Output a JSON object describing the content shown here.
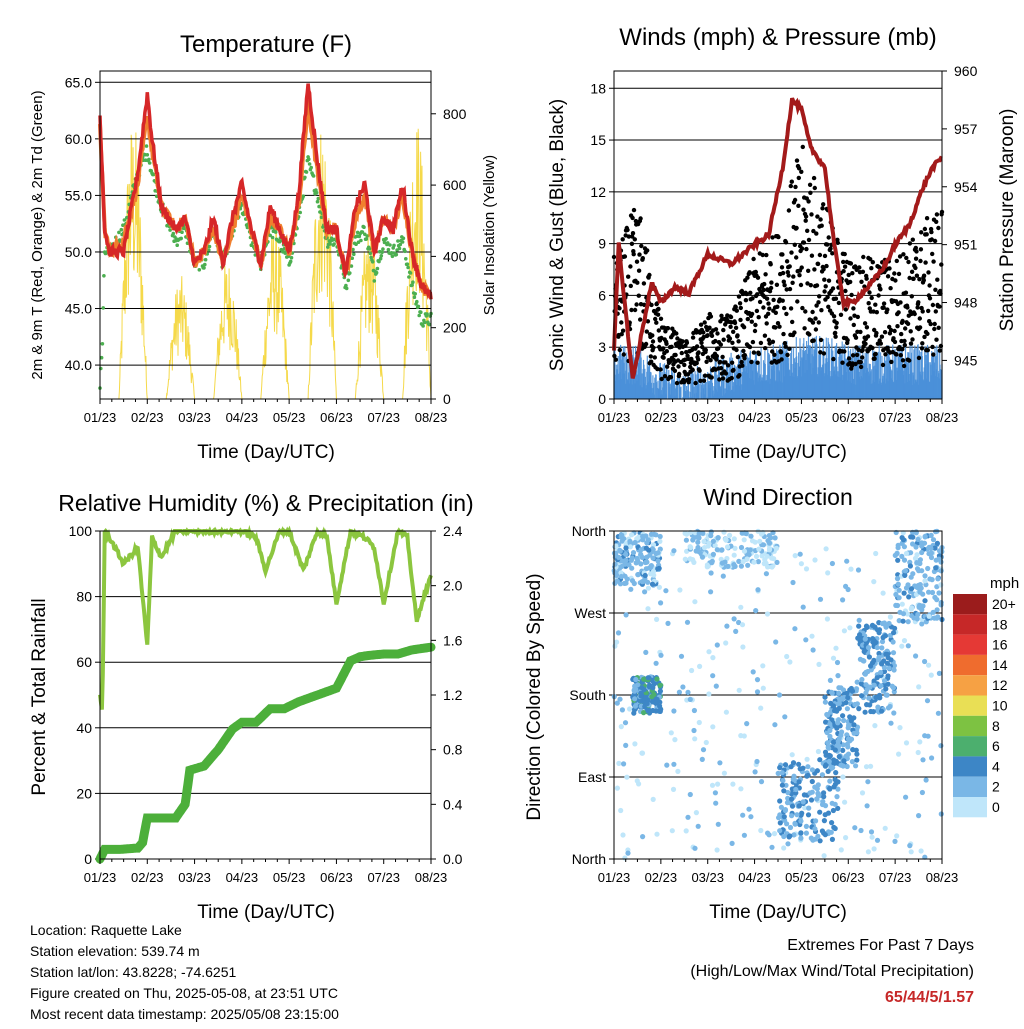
{
  "panels": {
    "temperature": {
      "title": "Temperature (F)",
      "ylabel_left": "2m & 9m T (Red, Orange) & 2m Td (Green)",
      "ylabel_right": "Solar Insolation (Yellow)",
      "xlabel": "Time (Day/UTC)"
    },
    "winds": {
      "title": "Winds (mph) & Pressure (mb)",
      "ylabel_left": "Sonic Wind & Gust (Blue, Black)",
      "ylabel_right": "Station Pressure (Maroon)",
      "xlabel": "Time (Day/UTC)"
    },
    "humidity": {
      "title": "Relative Humidity (%) & Precipitation (in)",
      "ylabel_left": "Percent & Total Rainfall",
      "xlabel": "Time (Day/UTC)"
    },
    "direction": {
      "title": "Wind Direction",
      "ylabel_left": "Direction (Colored By Speed)",
      "xlabel": "Time (Day/UTC)",
      "legend_title": "mph"
    }
  },
  "footer": {
    "location": "Location: Raquette Lake",
    "elevation": "Station elevation: 539.74 m",
    "latlon": "Station lat/lon: 43.8228; -74.6251",
    "created": "Figure created on Thu, 2025-05-08, at 23:51 UTC",
    "recent": "Most recent data timestamp: 2025/05/08 23:15:00",
    "extremes_title": "Extremes For Past 7 Days",
    "extremes_sub": "(High/Low/Max Wind/Total Precipitation)",
    "extremes_value": "65/44/5/1.57"
  },
  "colors": {
    "temp2m": "#d62728",
    "temp9m": "#f07f2e",
    "dewpoint": "#4caf50",
    "solar": "#f5d94a",
    "wind": "#4a90d9",
    "gust": "#000000",
    "pressure": "#a31a1a",
    "rh": "#8cc63f",
    "precip": "#4caf3a"
  },
  "chart_data": [
    {
      "id": "temperature",
      "type": "line",
      "title": "Temperature (F)",
      "xlabel": "Time (Day/UTC)",
      "ylabel": "2m & 9m T (Red, Orange) & 2m Td (Green)",
      "ylabel_right": "Solar Insolation (Yellow)",
      "x_ticks": [
        "01/23",
        "02/23",
        "03/23",
        "04/23",
        "05/23",
        "06/23",
        "07/23",
        "08/23"
      ],
      "xlim": [
        0,
        7
      ],
      "ylim": [
        37,
        66
      ],
      "y_ticks": [
        40.0,
        45.0,
        50.0,
        55.0,
        60.0,
        65.0
      ],
      "y_tick_labels": [
        "40.0",
        "45.0",
        "50.0",
        "55.0",
        "60.0",
        "65.0"
      ],
      "ylim_right": [
        0,
        920
      ],
      "y_ticks_right": [
        0,
        200,
        400,
        600,
        800
      ],
      "series": [
        {
          "name": "2m T",
          "color": "#d62728",
          "x": [
            0,
            0.1,
            0.2,
            0.5,
            0.8,
            1.0,
            1.1,
            1.3,
            1.6,
            1.8,
            2.0,
            2.2,
            2.4,
            2.6,
            2.8,
            3.0,
            3.2,
            3.4,
            3.6,
            3.8,
            4.0,
            4.2,
            4.4,
            4.6,
            4.8,
            5.0,
            5.2,
            5.4,
            5.6,
            5.8,
            6.0,
            6.2,
            6.4,
            6.6,
            6.8,
            7.0
          ],
          "y": [
            62,
            52,
            50,
            50,
            57,
            64,
            60,
            54,
            52,
            53,
            49,
            50,
            53,
            49,
            53,
            56,
            52,
            49,
            54,
            52,
            50,
            55,
            65,
            58,
            52,
            52,
            48,
            54,
            56,
            50,
            53,
            52,
            56,
            50,
            47,
            46
          ]
        },
        {
          "name": "9m T",
          "color": "#f07f2e",
          "x": [
            0,
            0.1,
            0.2,
            0.5,
            0.8,
            1.0,
            1.1,
            1.3,
            1.6,
            1.8,
            2.0,
            2.2,
            2.4,
            2.6,
            2.8,
            3.0,
            3.2,
            3.4,
            3.6,
            3.8,
            4.0,
            4.2,
            4.4,
            4.6,
            4.8,
            5.0,
            5.2,
            5.4,
            5.6,
            5.8,
            6.0,
            6.2,
            6.4,
            6.6,
            6.8,
            7.0
          ],
          "y": [
            61,
            52,
            50,
            51,
            56,
            62,
            59,
            54,
            52,
            53,
            49,
            50,
            52,
            49,
            52,
            55,
            52,
            49,
            53,
            52,
            50,
            54,
            63,
            57,
            52,
            52,
            48,
            53,
            55,
            50,
            53,
            52,
            55,
            50,
            47,
            46
          ]
        },
        {
          "name": "2m Td",
          "color": "#4caf50",
          "x": [
            0,
            0.05,
            0.1,
            0.2,
            0.5,
            0.8,
            1.0,
            1.1,
            1.3,
            1.6,
            1.8,
            2.0,
            2.2,
            2.4,
            2.6,
            2.8,
            3.0,
            3.2,
            3.4,
            3.6,
            3.8,
            4.0,
            4.2,
            4.4,
            4.6,
            4.8,
            5.0,
            5.2,
            5.4,
            5.6,
            5.8,
            6.0,
            6.2,
            6.4,
            6.6,
            6.8,
            7.0
          ],
          "y": [
            38,
            42,
            50,
            50,
            52,
            57,
            59,
            57,
            54,
            51,
            52,
            49,
            49,
            52,
            49,
            52,
            54,
            51,
            49,
            52,
            51,
            49,
            53,
            58,
            55,
            51,
            51,
            47,
            51,
            52,
            48,
            51,
            50,
            51,
            47,
            44,
            44
          ]
        }
      ],
      "solar_series": {
        "name": "Solar Insolation",
        "color": "#f5d94a",
        "day_centers": [
          0.7,
          1.7,
          2.7,
          3.7,
          4.7,
          5.7,
          6.7
        ],
        "peaks": [
          800,
          350,
          400,
          500,
          800,
          500,
          800
        ]
      }
    },
    {
      "id": "winds",
      "type": "scatter",
      "title": "Winds (mph) & Pressure (mb)",
      "xlabel": "Time (Day/UTC)",
      "ylabel": "Sonic Wind & Gust (Blue, Black)",
      "ylabel_right": "Station Pressure (Maroon)",
      "x_ticks": [
        "01/23",
        "02/23",
        "03/23",
        "04/23",
        "05/23",
        "06/23",
        "07/23",
        "08/23"
      ],
      "xlim": [
        0,
        7
      ],
      "ylim": [
        0,
        19
      ],
      "y_ticks": [
        0,
        3,
        6,
        9,
        12,
        15,
        18
      ],
      "ylim_right": [
        943,
        960
      ],
      "y_ticks_right": [
        945,
        948,
        951,
        954,
        957,
        960
      ],
      "series": [
        {
          "name": "Sonic Wind",
          "color": "#4a90d9",
          "x": [
            0,
            0.5,
            1.0,
            1.5,
            2.0,
            2.5,
            3.0,
            3.5,
            4.0,
            4.5,
            5.0,
            5.5,
            6.0,
            6.5,
            7.0
          ],
          "y": [
            2,
            2,
            1,
            0.5,
            1,
            1.5,
            2,
            2,
            2.5,
            2.5,
            2,
            2,
            2,
            2,
            2
          ]
        },
        {
          "name": "Gust",
          "color": "#000000",
          "x": [
            0,
            0.5,
            1.0,
            1.5,
            2.0,
            2.5,
            3.0,
            3.5,
            4.0,
            4.5,
            5.0,
            5.5,
            6.0,
            6.5,
            7.0
          ],
          "y": [
            5,
            7,
            3,
            2,
            3,
            3,
            5,
            6,
            9,
            7,
            5,
            5,
            5,
            6,
            7
          ]
        },
        {
          "name": "Station Pressure",
          "color": "#a31a1a",
          "x": [
            0,
            0.1,
            0.4,
            0.8,
            1.0,
            1.3,
            1.6,
            2.0,
            2.5,
            3.0,
            3.3,
            3.6,
            3.8,
            4.0,
            4.2,
            4.5,
            4.7,
            4.9,
            5.1,
            5.3,
            5.5,
            5.8,
            6.0,
            6.3,
            6.6,
            6.8,
            7.0
          ],
          "y": [
            945.5,
            951,
            944,
            949,
            948,
            948.8,
            948.5,
            950.5,
            950,
            951,
            951.5,
            955,
            958.5,
            958,
            956,
            955,
            951,
            948,
            948,
            948.5,
            949,
            950,
            951,
            952,
            954,
            955,
            955.5
          ]
        }
      ]
    },
    {
      "id": "humidity",
      "type": "line",
      "title": "Relative Humidity (%) & Precipitation (in)",
      "xlabel": "Time (Day/UTC)",
      "ylabel": "Percent & Total Rainfall",
      "x_ticks": [
        "01/23",
        "02/23",
        "03/23",
        "04/23",
        "05/23",
        "06/23",
        "07/23",
        "08/23"
      ],
      "xlim": [
        0,
        7
      ],
      "ylim": [
        0,
        100
      ],
      "y_ticks": [
        0,
        20,
        40,
        60,
        80,
        100
      ],
      "ylim_right": [
        0,
        2.4
      ],
      "y_ticks_right": [
        0.0,
        0.4,
        0.8,
        1.2,
        1.6,
        2.0,
        2.4
      ],
      "y_tick_labels_right": [
        "0.0",
        "0.4",
        "0.8",
        "1.2",
        "1.6",
        "2.0",
        "2.4"
      ],
      "series": [
        {
          "name": "Relative Humidity",
          "color": "#8cc63f",
          "x": [
            0,
            0.05,
            0.1,
            0.2,
            0.5,
            0.8,
            1.0,
            1.1,
            1.3,
            1.6,
            2.0,
            2.5,
            3.0,
            3.3,
            3.5,
            3.8,
            4.0,
            4.3,
            4.6,
            4.8,
            5.0,
            5.3,
            5.6,
            5.8,
            6.0,
            6.3,
            6.5,
            6.7,
            6.8,
            7.0
          ],
          "y": [
            50,
            45,
            100,
            98,
            90,
            95,
            65,
            98,
            92,
            100,
            100,
            100,
            100,
            98,
            88,
            100,
            100,
            88,
            100,
            98,
            78,
            100,
            98,
            95,
            78,
            100,
            98,
            72,
            78,
            86
          ]
        },
        {
          "name": "Total Rainfall",
          "color": "#4caf3a",
          "x": [
            0,
            0.1,
            0.4,
            0.8,
            0.9,
            1.0,
            1.2,
            1.6,
            1.8,
            1.9,
            2.2,
            2.5,
            2.8,
            3.0,
            3.3,
            3.6,
            3.9,
            4.2,
            4.6,
            5.0,
            5.3,
            5.5,
            5.7,
            6.0,
            6.3,
            6.6,
            6.8,
            7.0
          ],
          "y": [
            0.0,
            0.07,
            0.07,
            0.08,
            0.12,
            0.3,
            0.3,
            0.3,
            0.4,
            0.65,
            0.68,
            0.8,
            0.95,
            1.0,
            1.0,
            1.1,
            1.1,
            1.15,
            1.2,
            1.25,
            1.45,
            1.48,
            1.49,
            1.5,
            1.5,
            1.53,
            1.54,
            1.55
          ]
        }
      ]
    },
    {
      "id": "direction",
      "type": "scatter",
      "title": "Wind Direction",
      "xlabel": "Time (Day/UTC)",
      "ylabel": "Direction (Colored By Speed)",
      "x_ticks": [
        "01/23",
        "02/23",
        "03/23",
        "04/23",
        "05/23",
        "06/23",
        "07/23",
        "08/23"
      ],
      "xlim": [
        0,
        7
      ],
      "y_ticks": [
        "North",
        "East",
        "South",
        "West",
        "North"
      ],
      "ylim": [
        0,
        360
      ],
      "legend": {
        "title": "mph",
        "placement": "right",
        "labels": [
          "20+",
          "18",
          "16",
          "14",
          "12",
          "10",
          "8",
          "6",
          "4",
          "2",
          "0"
        ],
        "colors": [
          "#9b1c1c",
          "#c62828",
          "#e53935",
          "#ef6c2e",
          "#f6a144",
          "#e9df55",
          "#7dc242",
          "#4caf6e",
          "#3d86c6",
          "#7ab7e6",
          "#bfe6fa"
        ]
      },
      "clusters": [
        {
          "x_range": [
            0,
            1.0
          ],
          "dir_range": [
            300,
            360
          ],
          "speed": 2
        },
        {
          "x_range": [
            0.4,
            1.0
          ],
          "dir_range": [
            160,
            200
          ],
          "speed": 4
        },
        {
          "x_range": [
            1.5,
            3.5
          ],
          "dir_range": [
            320,
            360
          ],
          "speed": 1
        },
        {
          "x_range": [
            3.5,
            4.8
          ],
          "dir_range": [
            20,
            110
          ],
          "speed": 3
        },
        {
          "x_range": [
            4.5,
            5.2
          ],
          "dir_range": [
            100,
            190
          ],
          "speed": 3
        },
        {
          "x_range": [
            5.2,
            6.0
          ],
          "dir_range": [
            160,
            260
          ],
          "speed": 3
        },
        {
          "x_range": [
            6.0,
            7.0
          ],
          "dir_range": [
            260,
            360
          ],
          "speed": 2
        }
      ]
    }
  ]
}
